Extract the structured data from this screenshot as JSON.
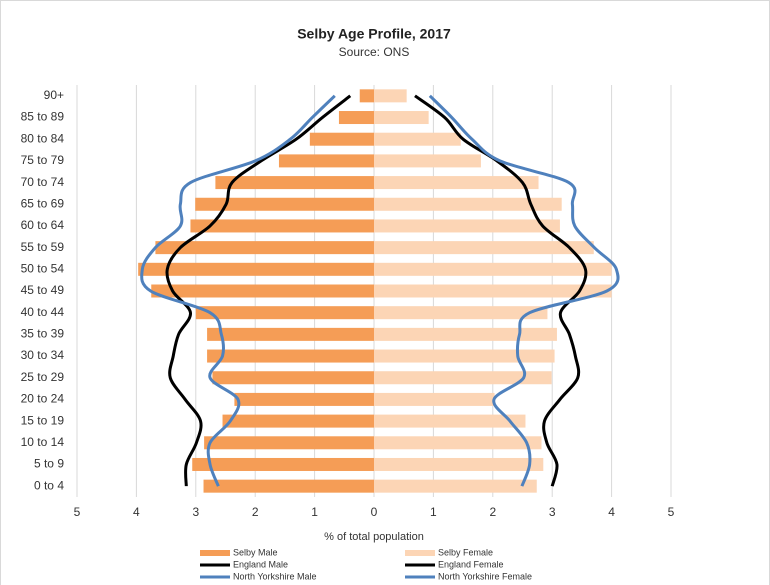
{
  "chart_data": {
    "type": "pyramid",
    "title": "Selby Age Profile, 2017",
    "subtitle": "Source: ONS",
    "x_label": "% of total population",
    "categories": [
      "90+",
      "85 to 89",
      "80 to 84",
      "75 to 79",
      "70 to 74",
      "65 to 69",
      "60 to 64",
      "55 to 59",
      "50 to 54",
      "45 to 49",
      "40 to 44",
      "35 to 39",
      "30 to 34",
      "25 to 29",
      "20 to 24",
      "15 to 19",
      "10 to 14",
      "5 to 9",
      "0 to 4"
    ],
    "xlim": [
      -5,
      5
    ],
    "xticks": [
      {
        "value": -5,
        "label": "5"
      },
      {
        "value": -4,
        "label": "4"
      },
      {
        "value": -3,
        "label": "3"
      },
      {
        "value": -2,
        "label": "2"
      },
      {
        "value": -1,
        "label": "1"
      },
      0,
      1,
      2,
      3,
      4,
      5
    ],
    "grid": true,
    "legend": "bottom",
    "series": [
      {
        "name": "Selby Male",
        "kind": "bar",
        "color": "#f59d56",
        "values": [
          -0.24,
          -0.59,
          -1.08,
          -1.6,
          -2.67,
          -3.01,
          -3.09,
          -3.68,
          -3.97,
          -3.75,
          -3.0,
          -2.81,
          -2.81,
          -2.72,
          -2.35,
          -2.55,
          -2.86,
          -3.06,
          -2.87
        ]
      },
      {
        "name": "Selby Female",
        "kind": "bar",
        "color": "#fcd5b5",
        "values": [
          0.55,
          0.92,
          1.46,
          1.8,
          2.77,
          3.16,
          3.13,
          3.7,
          4.0,
          4.0,
          2.92,
          3.08,
          3.04,
          2.99,
          2.03,
          2.55,
          2.82,
          2.85,
          2.74
        ]
      },
      {
        "name": "England Male",
        "kind": "line",
        "color": "#000000",
        "values": [
          -0.4,
          -0.87,
          -1.31,
          -1.9,
          -2.39,
          -2.49,
          -2.76,
          -3.26,
          -3.48,
          -3.39,
          -3.09,
          -3.29,
          -3.38,
          -3.43,
          -3.18,
          -2.92,
          -2.99,
          -3.16,
          -3.16
        ]
      },
      {
        "name": "England Female",
        "kind": "line",
        "color": "#000000",
        "values": [
          0.69,
          1.19,
          1.5,
          2.07,
          2.5,
          2.64,
          2.84,
          3.29,
          3.56,
          3.46,
          3.14,
          3.29,
          3.39,
          3.43,
          3.13,
          2.87,
          2.91,
          3.08,
          3.0
        ]
      },
      {
        "name": "North Yorkshire Male",
        "kind": "line",
        "color": "#4f81bd",
        "values": [
          -0.66,
          -1.04,
          -1.41,
          -2.0,
          -3.09,
          -3.26,
          -3.26,
          -3.68,
          -3.9,
          -3.76,
          -2.76,
          -2.57,
          -2.55,
          -2.76,
          -2.29,
          -2.42,
          -2.76,
          -2.76,
          -2.62
        ]
      },
      {
        "name": "North Yorkshire Female",
        "kind": "line",
        "color": "#4f81bd",
        "values": [
          0.94,
          1.31,
          1.65,
          2.12,
          3.28,
          3.34,
          3.38,
          3.71,
          4.08,
          3.92,
          2.62,
          2.45,
          2.42,
          2.52,
          2.02,
          2.29,
          2.57,
          2.62,
          2.49
        ]
      }
    ]
  }
}
